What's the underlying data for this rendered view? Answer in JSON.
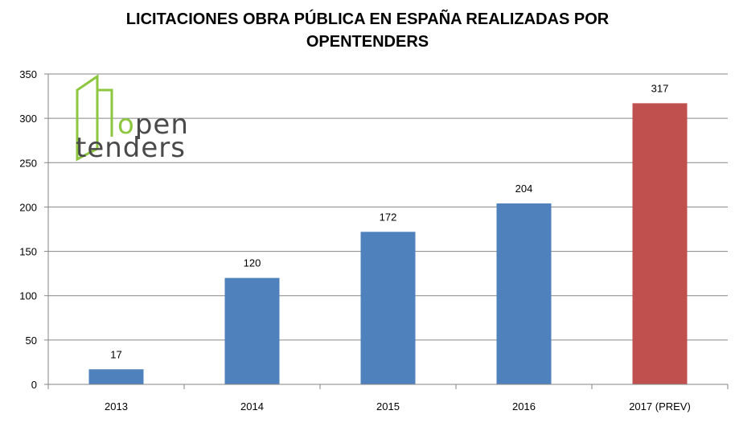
{
  "chart_data": {
    "type": "bar",
    "title": [
      "LICITACIONES OBRA PÚBLICA EN ESPAÑA REALIZADAS POR",
      "OPENTENDERS"
    ],
    "categories": [
      "2013",
      "2014",
      "2015",
      "2016",
      "2017 (PREV)"
    ],
    "values": [
      17,
      120,
      172,
      204,
      317
    ],
    "data_labels": [
      "17",
      "120",
      "172",
      "204",
      "317"
    ],
    "bar_colors": [
      "#4f81bd",
      "#4f81bd",
      "#4f81bd",
      "#4f81bd",
      "#c0504d"
    ],
    "ylim": [
      0,
      350
    ],
    "yticks": [
      0,
      50,
      100,
      150,
      200,
      250,
      300,
      350
    ],
    "grid": true,
    "xlabel": "",
    "ylabel": ""
  },
  "logo": {
    "line1": "open",
    "line2": "tenders",
    "accent_color": "#8dc63f"
  }
}
